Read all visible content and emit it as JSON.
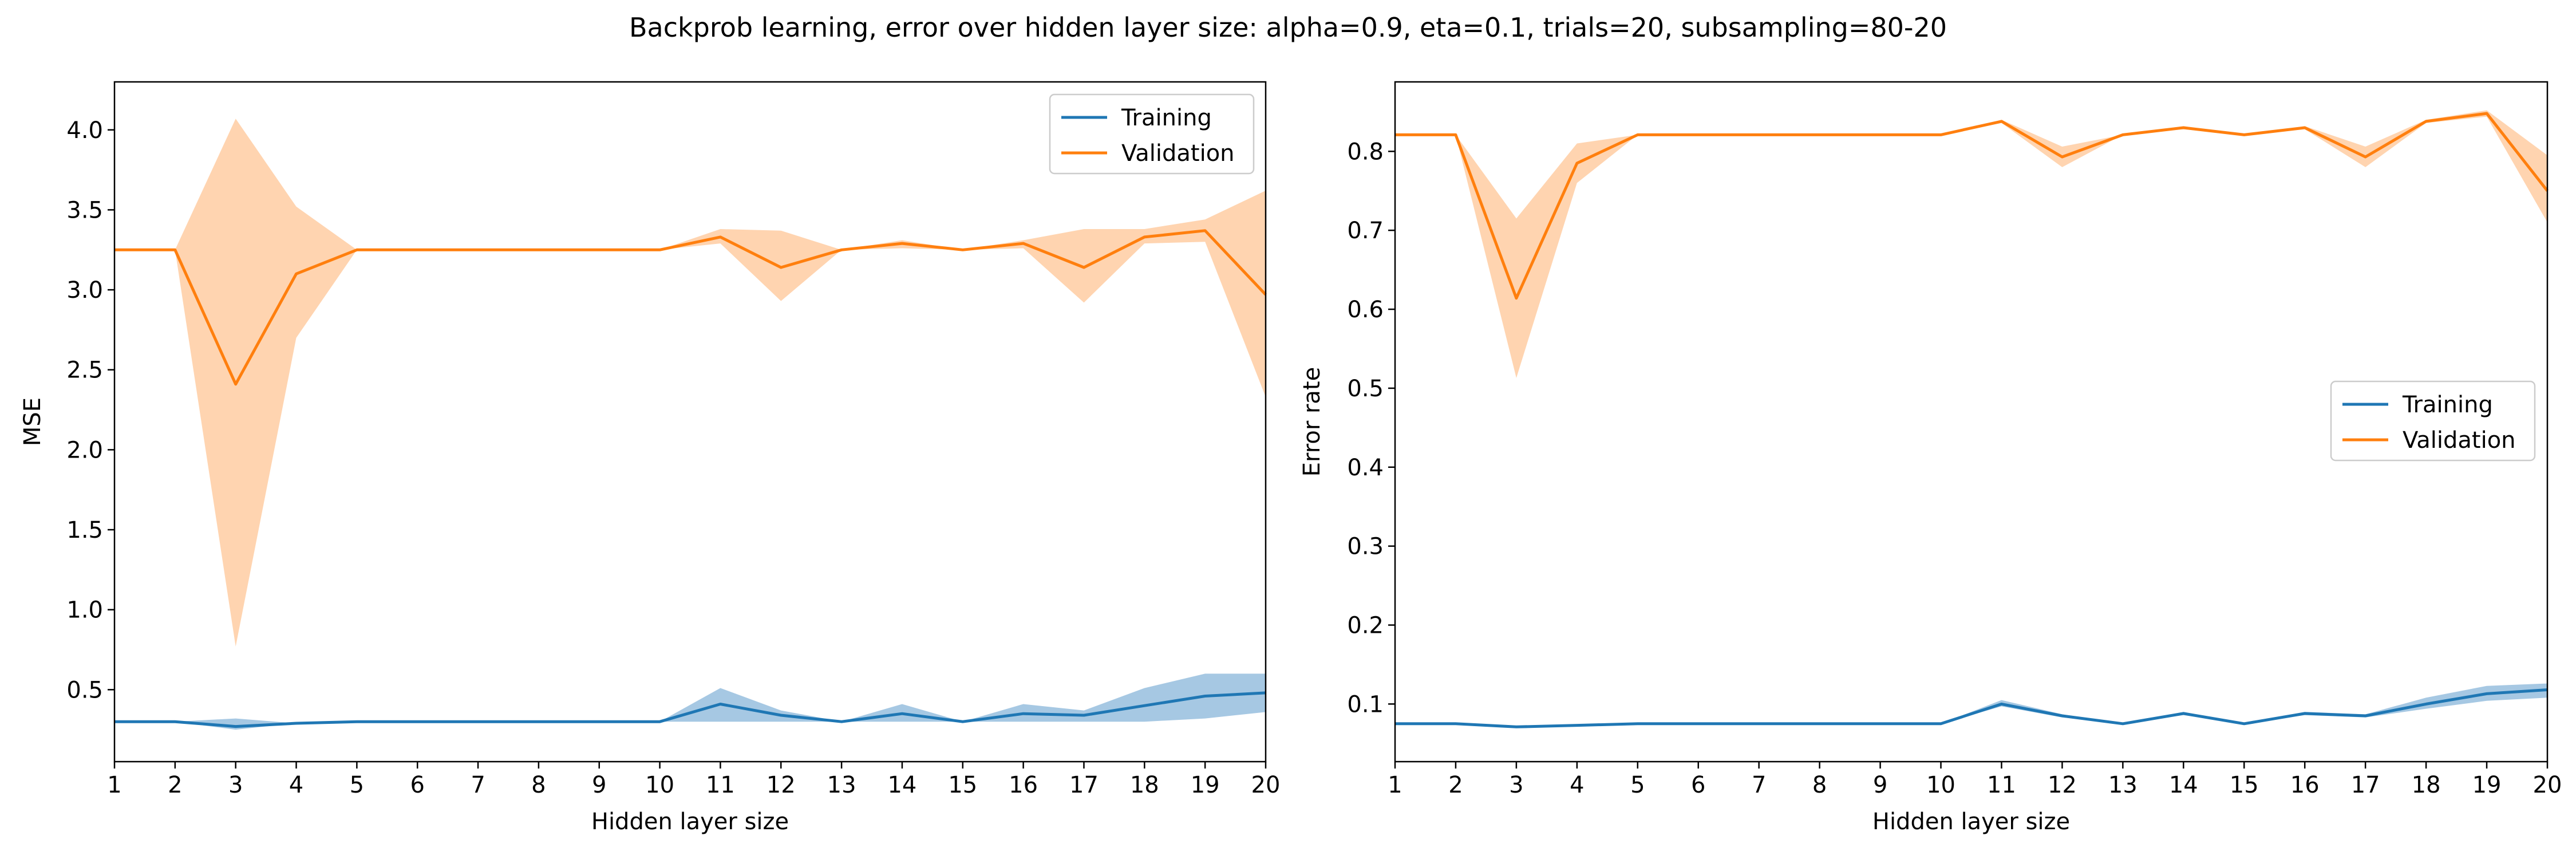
{
  "figure": {
    "title": "Backprob learning, error over hidden layer size: alpha=0.9, eta=0.1, trials=20, subsampling=80-20"
  },
  "colors": {
    "training": "#1f77b4",
    "training_band": "#a6c8e3",
    "validation": "#ff7f0e",
    "validation_band": "#ffd4b0"
  },
  "chart_data": [
    {
      "type": "line",
      "xlabel": "Hidden layer size",
      "ylabel": "MSE",
      "xlim": [
        1,
        20
      ],
      "ylim": [
        0.05,
        4.3
      ],
      "xticks": [
        "1",
        "2",
        "3",
        "4",
        "5",
        "6",
        "7",
        "8",
        "9",
        "10",
        "11",
        "12",
        "13",
        "14",
        "15",
        "16",
        "17",
        "18",
        "19",
        "20"
      ],
      "yticks": [
        "0.5",
        "1.0",
        "1.5",
        "2.0",
        "2.5",
        "3.0",
        "3.5",
        "4.0"
      ],
      "legend_position": "top-right",
      "grid": false,
      "x": [
        1,
        2,
        3,
        4,
        5,
        6,
        7,
        8,
        9,
        10,
        11,
        12,
        13,
        14,
        15,
        16,
        17,
        18,
        19,
        20
      ],
      "series": [
        {
          "name": "Training",
          "values": [
            0.3,
            0.3,
            0.27,
            0.29,
            0.3,
            0.3,
            0.3,
            0.3,
            0.3,
            0.3,
            0.41,
            0.34,
            0.3,
            0.35,
            0.3,
            0.35,
            0.34,
            0.4,
            0.46,
            0.48
          ],
          "upper": [
            0.3,
            0.3,
            0.32,
            0.29,
            0.3,
            0.3,
            0.3,
            0.3,
            0.3,
            0.3,
            0.51,
            0.37,
            0.3,
            0.41,
            0.3,
            0.41,
            0.37,
            0.51,
            0.6,
            0.6
          ],
          "lower": [
            0.3,
            0.3,
            0.25,
            0.29,
            0.3,
            0.3,
            0.3,
            0.3,
            0.3,
            0.3,
            0.3,
            0.3,
            0.3,
            0.3,
            0.3,
            0.3,
            0.3,
            0.3,
            0.32,
            0.36
          ]
        },
        {
          "name": "Validation",
          "values": [
            3.25,
            3.25,
            2.41,
            3.1,
            3.25,
            3.25,
            3.25,
            3.25,
            3.25,
            3.25,
            3.33,
            3.14,
            3.25,
            3.29,
            3.25,
            3.29,
            3.14,
            3.33,
            3.37,
            2.97
          ],
          "upper": [
            3.25,
            3.25,
            4.07,
            3.52,
            3.25,
            3.25,
            3.25,
            3.25,
            3.25,
            3.25,
            3.38,
            3.37,
            3.25,
            3.31,
            3.25,
            3.31,
            3.38,
            3.38,
            3.44,
            3.62
          ],
          "lower": [
            3.25,
            3.25,
            0.77,
            2.7,
            3.25,
            3.25,
            3.25,
            3.25,
            3.25,
            3.25,
            3.29,
            2.93,
            3.25,
            3.26,
            3.25,
            3.26,
            2.92,
            3.29,
            3.3,
            2.33
          ]
        }
      ]
    },
    {
      "type": "line",
      "xlabel": "Hidden layer size",
      "ylabel": "Error rate",
      "xlim": [
        1,
        20
      ],
      "ylim": [
        0.027,
        0.888
      ],
      "xticks": [
        "1",
        "2",
        "3",
        "4",
        "5",
        "6",
        "7",
        "8",
        "9",
        "10",
        "11",
        "12",
        "13",
        "14",
        "15",
        "16",
        "17",
        "18",
        "19",
        "20"
      ],
      "yticks": [
        "0.1",
        "0.2",
        "0.3",
        "0.4",
        "0.5",
        "0.6",
        "0.7",
        "0.8"
      ],
      "legend_position": "center-right",
      "grid": false,
      "x": [
        1,
        2,
        3,
        4,
        5,
        6,
        7,
        8,
        9,
        10,
        11,
        12,
        13,
        14,
        15,
        16,
        17,
        18,
        19,
        20
      ],
      "series": [
        {
          "name": "Training",
          "values": [
            0.075,
            0.075,
            0.071,
            0.073,
            0.075,
            0.075,
            0.075,
            0.075,
            0.075,
            0.075,
            0.1,
            0.085,
            0.075,
            0.088,
            0.075,
            0.088,
            0.085,
            0.1,
            0.113,
            0.118
          ],
          "upper": [
            0.075,
            0.075,
            0.071,
            0.073,
            0.075,
            0.075,
            0.075,
            0.075,
            0.075,
            0.075,
            0.105,
            0.087,
            0.075,
            0.09,
            0.075,
            0.09,
            0.087,
            0.108,
            0.123,
            0.126
          ],
          "lower": [
            0.075,
            0.075,
            0.071,
            0.073,
            0.075,
            0.075,
            0.075,
            0.075,
            0.075,
            0.075,
            0.097,
            0.083,
            0.075,
            0.086,
            0.075,
            0.086,
            0.083,
            0.094,
            0.104,
            0.108
          ]
        },
        {
          "name": "Validation",
          "values": [
            0.821,
            0.821,
            0.614,
            0.785,
            0.821,
            0.821,
            0.821,
            0.821,
            0.821,
            0.821,
            0.838,
            0.793,
            0.821,
            0.83,
            0.821,
            0.83,
            0.793,
            0.838,
            0.848,
            0.75
          ],
          "upper": [
            0.821,
            0.821,
            0.715,
            0.81,
            0.821,
            0.821,
            0.821,
            0.821,
            0.821,
            0.821,
            0.84,
            0.806,
            0.821,
            0.832,
            0.821,
            0.832,
            0.806,
            0.84,
            0.852,
            0.795
          ],
          "lower": [
            0.821,
            0.821,
            0.513,
            0.76,
            0.821,
            0.821,
            0.821,
            0.821,
            0.821,
            0.821,
            0.836,
            0.78,
            0.821,
            0.828,
            0.821,
            0.828,
            0.78,
            0.836,
            0.844,
            0.71
          ]
        }
      ]
    }
  ]
}
